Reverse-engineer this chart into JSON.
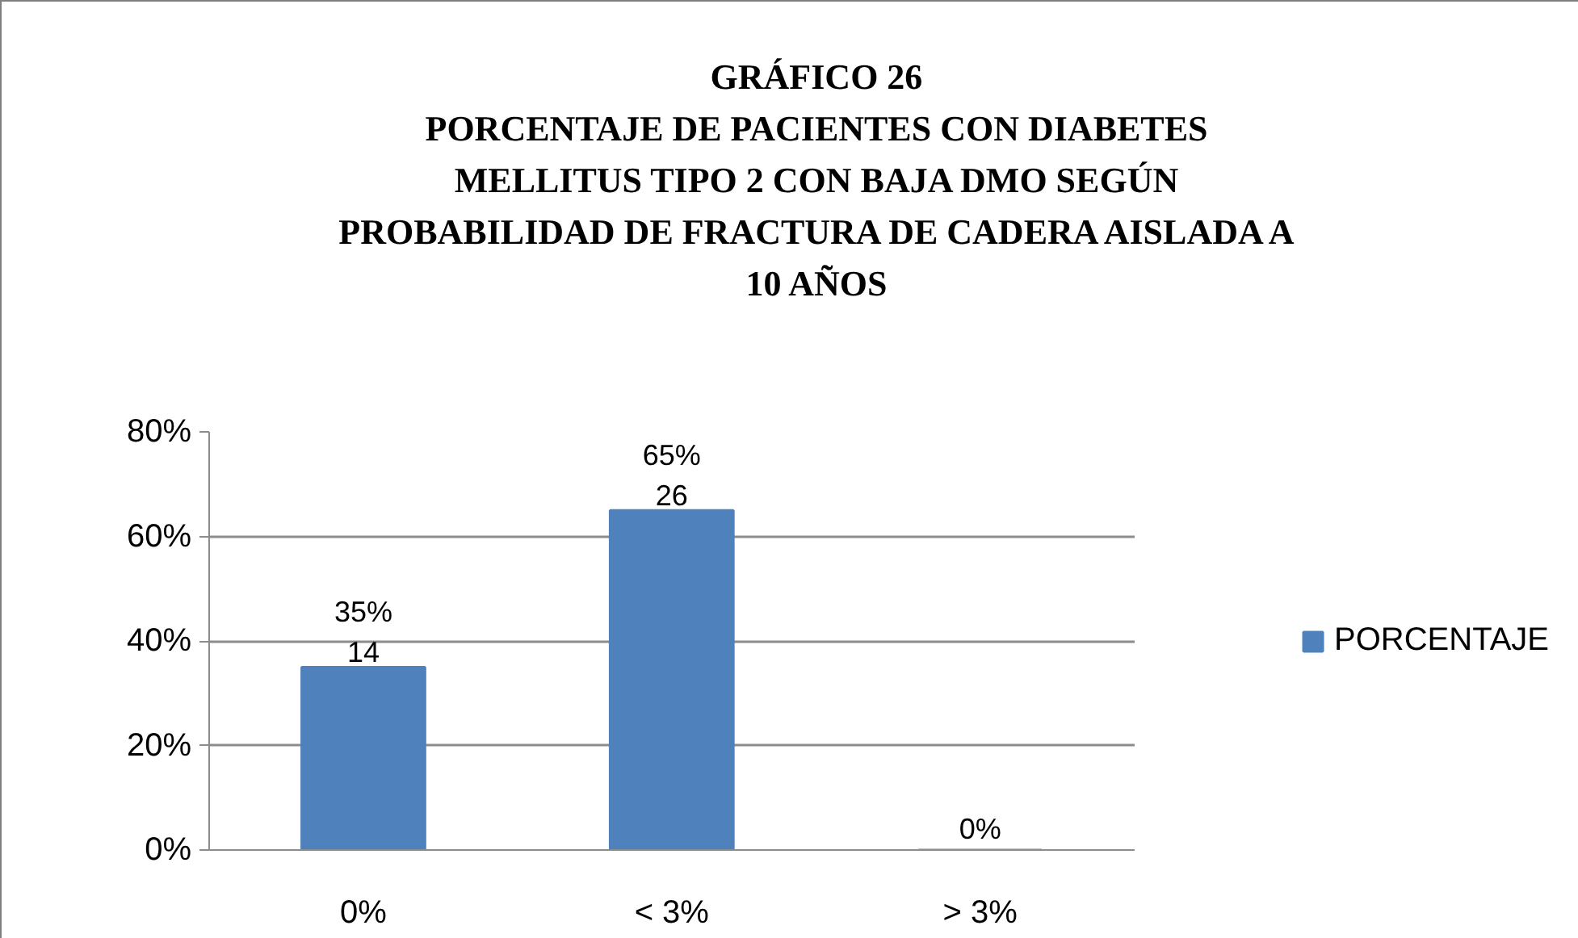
{
  "chart_data": {
    "type": "bar",
    "title": "GRÁFICO 26\nPORCENTAJE DE PACIENTES CON DIABETES\nMELLITUS TIPO 2 CON BAJA DMO SEGÚN\nPROBABILIDAD DE FRACTURA DE CADERA AISLADA A\n10 AÑOS",
    "categories": [
      "0%",
      "< 3%",
      "> 3%"
    ],
    "series": [
      {
        "name": "PORCENTAJE",
        "color": "#4f81bd",
        "values": [
          35,
          65,
          0
        ],
        "value_labels": [
          "35%\n14",
          "65%\n26",
          "0%"
        ]
      }
    ],
    "ylim": [
      0,
      80
    ],
    "yticks": [
      {
        "value": 0,
        "label": "0%"
      },
      {
        "value": 20,
        "label": "20%"
      },
      {
        "value": 40,
        "label": "40%"
      },
      {
        "value": 60,
        "label": "60%"
      },
      {
        "value": 80,
        "label": "80%"
      }
    ],
    "grid": "y",
    "legend": "right"
  }
}
